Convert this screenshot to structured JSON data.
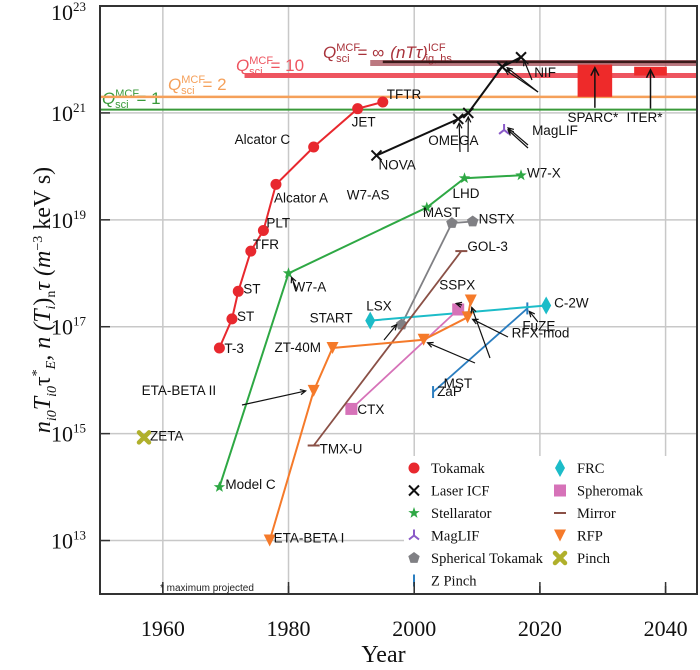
{
  "chart_data": {
    "type": "scatter",
    "title": "",
    "xlabel": "Year",
    "ylabel": "n_i0 T_i0 τ*_E, n (T_i)_n τ (m^-3 keV s)",
    "xlim": [
      1950,
      2045
    ],
    "ylim_log10": [
      12,
      23
    ],
    "yscale": "log",
    "grid": true,
    "x_ticks": [
      1960,
      1980,
      2000,
      2020,
      2040
    ],
    "y_ticks": [
      {
        "base": "10",
        "exp": "13",
        "log10": 13
      },
      {
        "base": "10",
        "exp": "15",
        "log10": 15
      },
      {
        "base": "10",
        "exp": "17",
        "log10": 17
      },
      {
        "base": "10",
        "exp": "19",
        "log10": 19
      },
      {
        "base": "10",
        "exp": "21",
        "log10": 21
      },
      {
        "base": "10",
        "exp": "23",
        "log10": 23
      }
    ],
    "ylabel_parts": {
      "main": "n",
      "sub1": "i0",
      "t": "T",
      "sub2": "i0",
      "tau": "τ",
      "star": "*",
      "subE": "E",
      "rest": ", n (T",
      "subi": "i",
      "paren": ")",
      "subn": "n",
      "tau2": "τ (m",
      "exp": "−3",
      "tail": " keV s)"
    },
    "note": "* maximum projected",
    "bands": [
      {
        "name": "Q_sci^MCF = 1",
        "label_main": "Q",
        "label_sup": "MCF",
        "label_sub": "sci",
        "label_rhs": "= 1",
        "value": 1.15e+21,
        "color": "#3a9a3a",
        "x_start": 1950
      },
      {
        "name": "Q_sci^MCF = 2",
        "label_main": "Q",
        "label_sup": "MCF",
        "label_sub": "sci",
        "label_rhs": "= 2",
        "value": 2e+21,
        "color": "#f5a05a",
        "x_start": 1950
      },
      {
        "name": "Q_sci^MCF = 10",
        "label_main": "Q",
        "label_sup": "MCF",
        "label_sub": "sci",
        "label_rhs": "= 10",
        "value": 5e+21,
        "color": "#ee5560",
        "x_start": 1973
      },
      {
        "name": "Q_sci^MCF = ∞",
        "label_main": "Q",
        "label_sup": "MCF",
        "label_sub": "sci",
        "label_rhs": "= ∞",
        "value": 8.6e+21,
        "color": "#b0606a",
        "x_start": 1993
      },
      {
        "name": "(nTτ)_ig,hs^ICF",
        "label_main": "(nTτ)",
        "label_sup": "ICF",
        "label_sub": "ig, hs",
        "label_rhs": "",
        "value": 9e+21,
        "color": "#3a1a1a",
        "x_start": 1995
      }
    ],
    "projected": [
      {
        "name": "SPARC*",
        "x_range": [
          2026,
          2031.5
        ],
        "y_range": [
          2e+21,
          8e+21
        ],
        "color": "#ee2a2a"
      },
      {
        "name": "ITER*",
        "x_range": [
          2035,
          2040.2
        ],
        "y_range": [
          5e+21,
          7.3e+21
        ],
        "color": "#ee2a2a"
      }
    ],
    "series": [
      {
        "name": "Tokamak",
        "marker": "circle",
        "color": "#e8282e",
        "points": [
          {
            "label": "T-3",
            "x": 1969,
            "y": 4e+16
          },
          {
            "label": "ST",
            "x": 1971,
            "y": 1.4e+17
          },
          {
            "label": "ST",
            "x": 1972,
            "y": 4.6e+17
          },
          {
            "label": "TFR",
            "x": 1974,
            "y": 2.6e+18
          },
          {
            "label": "PLT",
            "x": 1976,
            "y": 6.3e+18
          },
          {
            "label": "Alcator A",
            "x": 1978,
            "y": 4.6e+19
          },
          {
            "label": "Alcator C",
            "x": 1984,
            "y": 2.3e+20
          },
          {
            "label": "JET",
            "x": 1991,
            "y": 1.2e+21
          },
          {
            "label": "TFTR",
            "x": 1995,
            "y": 1.6e+21
          }
        ]
      },
      {
        "name": "Laser ICF",
        "marker": "x",
        "color": "#111111",
        "points": [
          {
            "label": "NOVA",
            "x": 1994,
            "y": 1.6e+20
          },
          {
            "label": "OMEGA",
            "x": 2007,
            "y": 7.7e+20
          },
          {
            "label": "",
            "x": 2008.6,
            "y": 1e+21
          },
          {
            "label": "NIF",
            "x": 2014,
            "y": 7.3e+21
          },
          {
            "label": "",
            "x": 2017,
            "y": 1.1e+22
          }
        ]
      },
      {
        "name": "Stellarator",
        "marker": "star",
        "color": "#2ea844",
        "points": [
          {
            "label": "Model C",
            "x": 1969,
            "y": 100000000000000.0
          },
          {
            "label": "W7-A",
            "x": 1980,
            "y": 1e+18
          },
          {
            "label": "W7-AS",
            "x": 2002,
            "y": 1.7e+19
          },
          {
            "label": "LHD",
            "x": 2008,
            "y": 6e+19
          },
          {
            "label": "W7-X",
            "x": 2017,
            "y": 6.8e+19
          }
        ]
      },
      {
        "name": "MagLIF",
        "marker": "tri",
        "color": "#8a5ac8",
        "points": [
          {
            "label": "MagLIF",
            "x": 2014.3,
            "y": 4.8e+20
          }
        ]
      },
      {
        "name": "Spherical Tokamak",
        "marker": "pentagon",
        "color": "#808084",
        "points": [
          {
            "label": "START",
            "x": 1998,
            "y": 1.1e+17
          },
          {
            "label": "MAST",
            "x": 2006,
            "y": 8.7e+18
          },
          {
            "label": "NSTX",
            "x": 2009.3,
            "y": 9.3e+18
          }
        ]
      },
      {
        "name": "Z Pinch",
        "marker": "vline",
        "color": "#2b7ec0",
        "points": [
          {
            "label": "ZaP",
            "x": 2003,
            "y": 6000000000000000.0
          },
          {
            "label": "FuZE",
            "x": 2018,
            "y": 2.2e+17
          }
        ]
      },
      {
        "name": "FRC",
        "marker": "diamond",
        "color": "#1cbcc8",
        "points": [
          {
            "label": "LSX",
            "x": 1993,
            "y": 1.3e+17
          },
          {
            "label": "C-2W",
            "x": 2021,
            "y": 2.5e+17
          }
        ]
      },
      {
        "name": "Spheromak",
        "marker": "square",
        "color": "#d672b8",
        "points": [
          {
            "label": "CTX",
            "x": 1990,
            "y": 2900000000000000.0
          },
          {
            "label": "SSPX",
            "x": 2007,
            "y": 2.1e+17
          }
        ]
      },
      {
        "name": "Mirror",
        "marker": "hline",
        "color": "#8a5046",
        "points": [
          {
            "label": "TMX-U",
            "x": 1984,
            "y": 600000000000000.0
          },
          {
            "label": "GOL-3",
            "x": 2007.5,
            "y": 2.6e+18
          }
        ]
      },
      {
        "name": "RFP",
        "marker": "tri-down",
        "color": "#f57a2a",
        "points": [
          {
            "label": "ETA-BETA I",
            "x": 1977,
            "y": 10000000000000.0
          },
          {
            "label": "ETA-BETA II",
            "x": 1984,
            "y": 6300000000000000.0
          },
          {
            "label": "ZT-40M",
            "x": 1987,
            "y": 4e+16
          },
          {
            "label": "MST",
            "x": 2001.5,
            "y": 5.7e+16
          },
          {
            "label": "RFX-mod",
            "x": 2008.5,
            "y": 1.5e+17
          },
          {
            "label": "MST",
            "x": 2009,
            "y": 3.1e+17
          }
        ]
      },
      {
        "name": "Pinch",
        "marker": "cross",
        "color": "#b0b02c",
        "points": [
          {
            "label": "ZETA",
            "x": 1957,
            "y": 850000000000000.0
          }
        ]
      }
    ],
    "legend": {
      "placement": "bottom-right",
      "columns": [
        [
          "Tokamak",
          "Laser ICF",
          "Stellarator",
          "MagLIF",
          "Spherical Tokamak",
          "Z Pinch"
        ],
        [
          "FRC",
          "Spheromak",
          "Mirror",
          "RFP",
          "Pinch"
        ]
      ]
    }
  }
}
